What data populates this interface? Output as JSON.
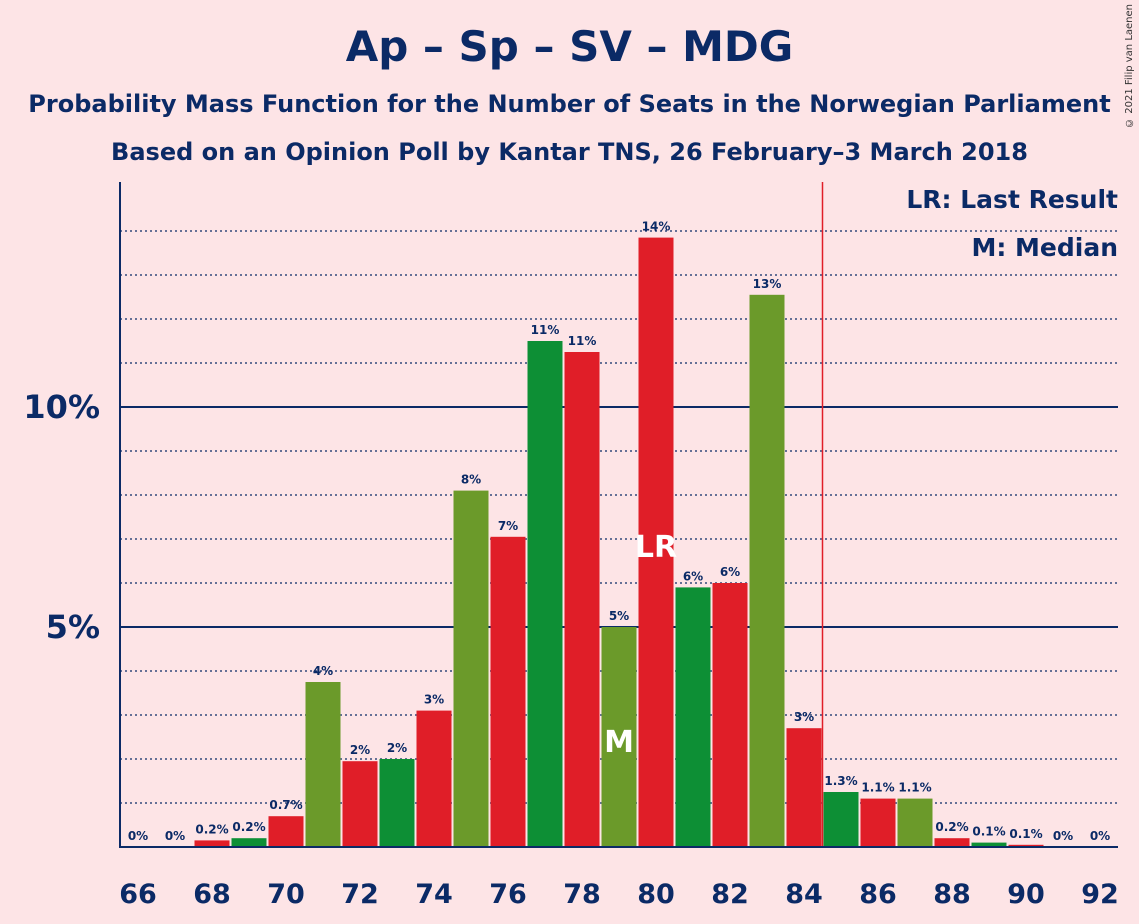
{
  "header": {
    "title": "Ap – Sp – SV – MDG",
    "subtitle1": "Probability Mass Function for the Number of Seats in the Norwegian Parliament",
    "subtitle2": "Based on an Opinion Poll by Kantar TNS, 26 February–3 March 2018",
    "copyright": "© 2021 Filip van Laenen"
  },
  "legend": {
    "last_result": "LR: Last Result",
    "median": "M: Median"
  },
  "colors": {
    "background": "#fde4e6",
    "text": "#0b2a66",
    "red": "#e01e28",
    "green": "#0d8f35",
    "olive": "#6b9a2a",
    "last_result_line": "#e01e28"
  },
  "chart_data": {
    "type": "bar",
    "x": [
      66,
      67,
      68,
      69,
      70,
      71,
      72,
      73,
      74,
      75,
      76,
      77,
      78,
      79,
      80,
      81,
      82,
      83,
      84,
      85,
      86,
      87,
      88,
      89,
      90,
      91,
      92
    ],
    "values": [
      0,
      0,
      0.15,
      0.2,
      0.7,
      3.75,
      1.95,
      2.0,
      3.1,
      8.1,
      7.05,
      11.5,
      11.25,
      5.0,
      13.85,
      5.9,
      6.0,
      12.55,
      2.7,
      1.25,
      1.1,
      1.1,
      0.2,
      0.1,
      0.05,
      0,
      0
    ],
    "data_labels": [
      "0%",
      "0%",
      "0.2%",
      "0.2%",
      "0.7%",
      "4%",
      "2%",
      "2%",
      "3%",
      "8%",
      "7%",
      "11%",
      "11%",
      "5%",
      "14%",
      "6%",
      "6%",
      "13%",
      "3%",
      "1.3%",
      "1.1%",
      "1.1%",
      "0.2%",
      "0.1%",
      "0.1%",
      "0%",
      "0%"
    ],
    "bar_colors": [
      "red",
      "green",
      "red",
      "green",
      "red",
      "olive",
      "red",
      "green",
      "red",
      "olive",
      "red",
      "green",
      "red",
      "olive",
      "red",
      "green",
      "red",
      "olive",
      "red",
      "green",
      "red",
      "olive",
      "red",
      "green",
      "red",
      "green",
      "red"
    ],
    "x_tick_labels": [
      "66",
      "68",
      "70",
      "72",
      "74",
      "76",
      "78",
      "80",
      "82",
      "84",
      "86",
      "88",
      "90",
      "92"
    ],
    "y_ticks": [
      {
        "value": 5,
        "label": "5%"
      },
      {
        "value": 10,
        "label": "10%"
      }
    ],
    "ylim": [
      0,
      15
    ],
    "minor_grid_step": 1,
    "last_result_line_x": 84.5,
    "markers": [
      {
        "x": 79,
        "label": "M"
      },
      {
        "x": 80,
        "label": "LR"
      }
    ]
  }
}
